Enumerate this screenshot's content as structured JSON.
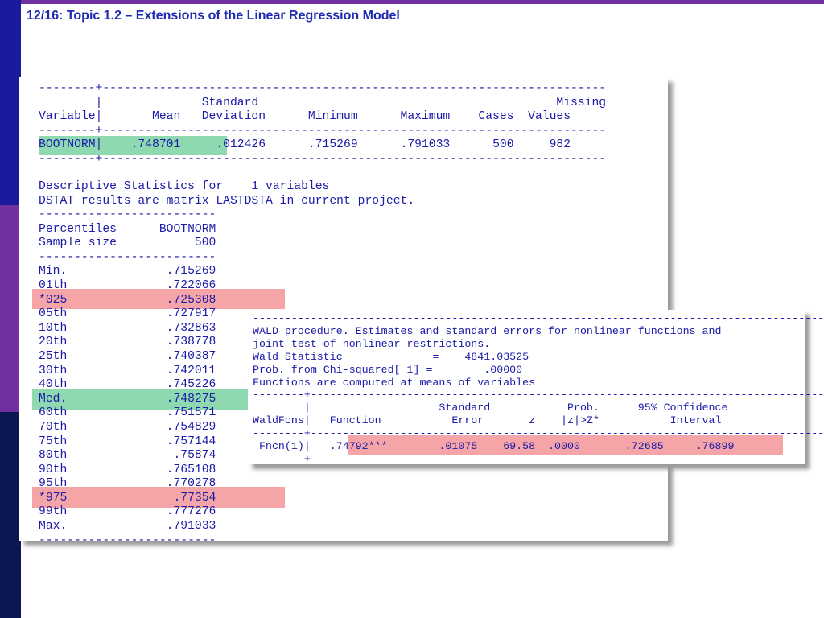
{
  "slide": {
    "title": "12/16: Topic 1.2 – Extensions of the Linear Regression Model"
  },
  "dstat": {
    "table_lines": [
      "--------+-----------------------------------------------------------------------",
      "        |              Standard                                          Missing",
      "Variable|       Mean   Deviation      Minimum      Maximum    Cases  Values",
      "--------+-----------------------------------------------------------------------",
      "BOOTNORM|    .748701     .012426      .715269      .791033      500     982",
      "--------+-----------------------------------------------------------------------"
    ],
    "info_lines": [
      "Descriptive Statistics for    1 variables",
      "DSTAT results are matrix LASTDSTA in current project."
    ],
    "percentile_header_lines": [
      "-------------------------",
      "Percentiles      BOOTNORM",
      "Sample size           500",
      "-------------------------"
    ],
    "percentile_rows": [
      "Min.              .715269",
      "01th              .722066",
      "*025              .725308",
      "05th              .727917",
      "10th              .732863",
      "20th              .738778",
      "25th              .740387",
      "30th              .742011",
      "40th              .745226",
      "Med.              .748275",
      "60th              .751571",
      "70th              .754829",
      "75th              .757144",
      "80th               .75874",
      "90th              .765108",
      "95th              .770278",
      "*975               .77354",
      "99th              .777276",
      "Max.              .791033",
      "-------------------------"
    ]
  },
  "wald": {
    "lines": [
      "-----------------------------------------------------------------------------------------",
      "WALD procedure. Estimates and standard errors for nonlinear functions and",
      "joint test of nonlinear restrictions.",
      "Wald Statistic              =    4841.03525",
      "Prob. from Chi-squared[ 1] =        .00000",
      "Functions are computed at means of variables",
      "--------+--------------------------------------------------------------------------------",
      "        |                    Standard            Prob.      95% Confidence",
      "WaldFcns|   Function           Error       z    |z|>Z*           Interval",
      "--------+--------------------------------------------------------------------------------",
      " Fncn(1)|   .74792***        .01075    69.58  .0000       .72685     .76899",
      "--------+--------------------------------------------------------------------------------"
    ]
  },
  "highlight_colors": {
    "green": "#8ed9b0",
    "red": "#f5a5a8"
  }
}
